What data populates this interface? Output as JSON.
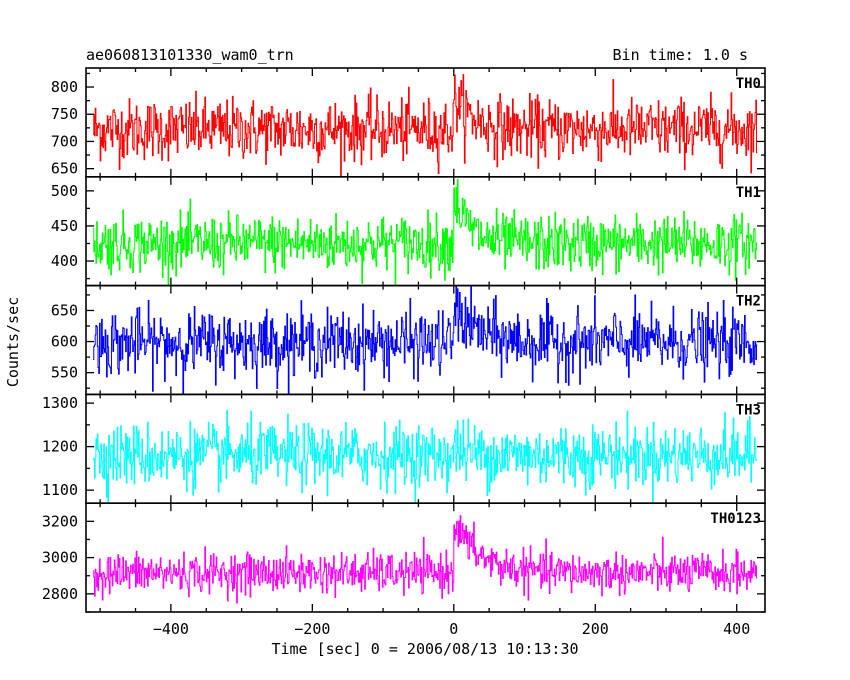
{
  "header": {
    "title": "ae060813101330_wam0_trn",
    "bin_time": "Bin time: 1.0 s"
  },
  "chart_data": {
    "type": "line",
    "xlabel": "Time [sec] 0 = 2006/08/13 10:13:30",
    "ylabel": "Counts/sec",
    "xlim": [
      -520,
      440
    ],
    "data_xlim": [
      -510,
      428
    ],
    "xticks_major": [
      -400,
      -200,
      0,
      200,
      400
    ],
    "xtick_labels": [
      "−400",
      "−200",
      "0",
      "200",
      "400"
    ],
    "series": [
      {
        "name": "TH0",
        "color": "#ff0000",
        "ylim": [
          635,
          835
        ],
        "yticks": [
          650,
          700,
          750,
          800
        ],
        "ytick_labels": [
          "650",
          "700",
          "750",
          "800"
        ],
        "baseline": 722,
        "noise": 28,
        "burst": {
          "t0": 0,
          "peak": 60,
          "decay": 25
        }
      },
      {
        "name": "TH1",
        "color": "#00ff00",
        "ylim": [
          365,
          520
        ],
        "yticks": [
          400,
          450,
          500
        ],
        "ytick_labels": [
          "400",
          "450",
          "500"
        ],
        "baseline": 425,
        "noise": 20,
        "burst": {
          "t0": 0,
          "peak": 70,
          "decay": 20
        }
      },
      {
        "name": "TH2",
        "color": "#0000ff",
        "ylim": [
          515,
          690
        ],
        "yticks": [
          550,
          600,
          650
        ],
        "ytick_labels": [
          "550",
          "600",
          "650"
        ],
        "baseline": 598,
        "noise": 26,
        "burst": {
          "t0": 0,
          "peak": 60,
          "decay": 30
        }
      },
      {
        "name": "TH3",
        "color": "#00ffff",
        "ylim": [
          1070,
          1320
        ],
        "yticks": [
          1100,
          1200,
          1300
        ],
        "ytick_labels": [
          "1100",
          "1200",
          "1300"
        ],
        "baseline": 1180,
        "noise": 36,
        "burst": {
          "t0": 0,
          "peak": 20,
          "decay": 20
        }
      },
      {
        "name": "TH0123",
        "color": "#ff00ff",
        "ylim": [
          2700,
          3300
        ],
        "yticks": [
          2800,
          3000,
          3200
        ],
        "ytick_labels": [
          "2800",
          "3000",
          "3200"
        ],
        "baseline": 2915,
        "noise": 55,
        "burst": {
          "t0": 0,
          "peak": 280,
          "decay": 35
        }
      }
    ]
  }
}
